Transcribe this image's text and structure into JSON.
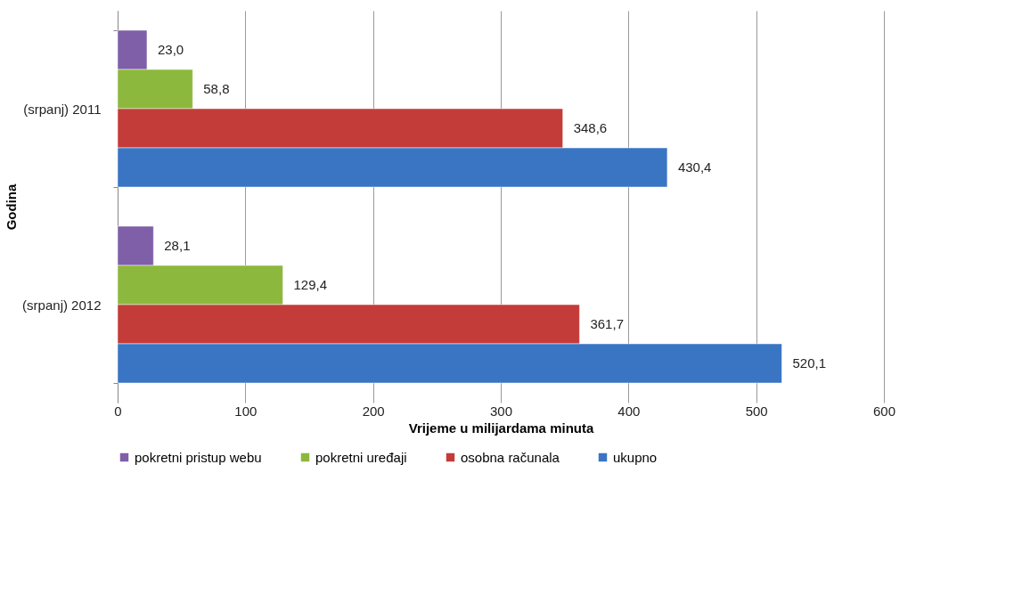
{
  "chart_data": {
    "type": "bar",
    "orientation": "horizontal",
    "ylabel": "Godina",
    "xlabel": "Vrijeme u milijardama minuta",
    "categories": [
      "(srpanj) 2011",
      "(srpanj) 2012"
    ],
    "series": [
      {
        "name": "pokretni pristup webu",
        "color": "#7f5fa8",
        "values": [
          23.0,
          28.1
        ],
        "value_labels": [
          "23,0",
          "28,1"
        ]
      },
      {
        "name": "pokretni uređaji",
        "color": "#8db83e",
        "values": [
          58.8,
          129.4
        ],
        "value_labels": [
          "58,8",
          "129,4"
        ]
      },
      {
        "name": "osobna računala",
        "color": "#c43c39",
        "values": [
          348.6,
          361.7
        ],
        "value_labels": [
          "348,6",
          "361,7"
        ]
      },
      {
        "name": "ukupno",
        "color": "#3a75c4",
        "values": [
          430.4,
          520.1
        ],
        "value_labels": [
          "430,4",
          "520,1"
        ]
      }
    ],
    "xlim": [
      0,
      600
    ],
    "xticks": [
      0,
      100,
      200,
      300,
      400,
      500,
      600
    ],
    "grid": "x",
    "legend": "bottom"
  }
}
